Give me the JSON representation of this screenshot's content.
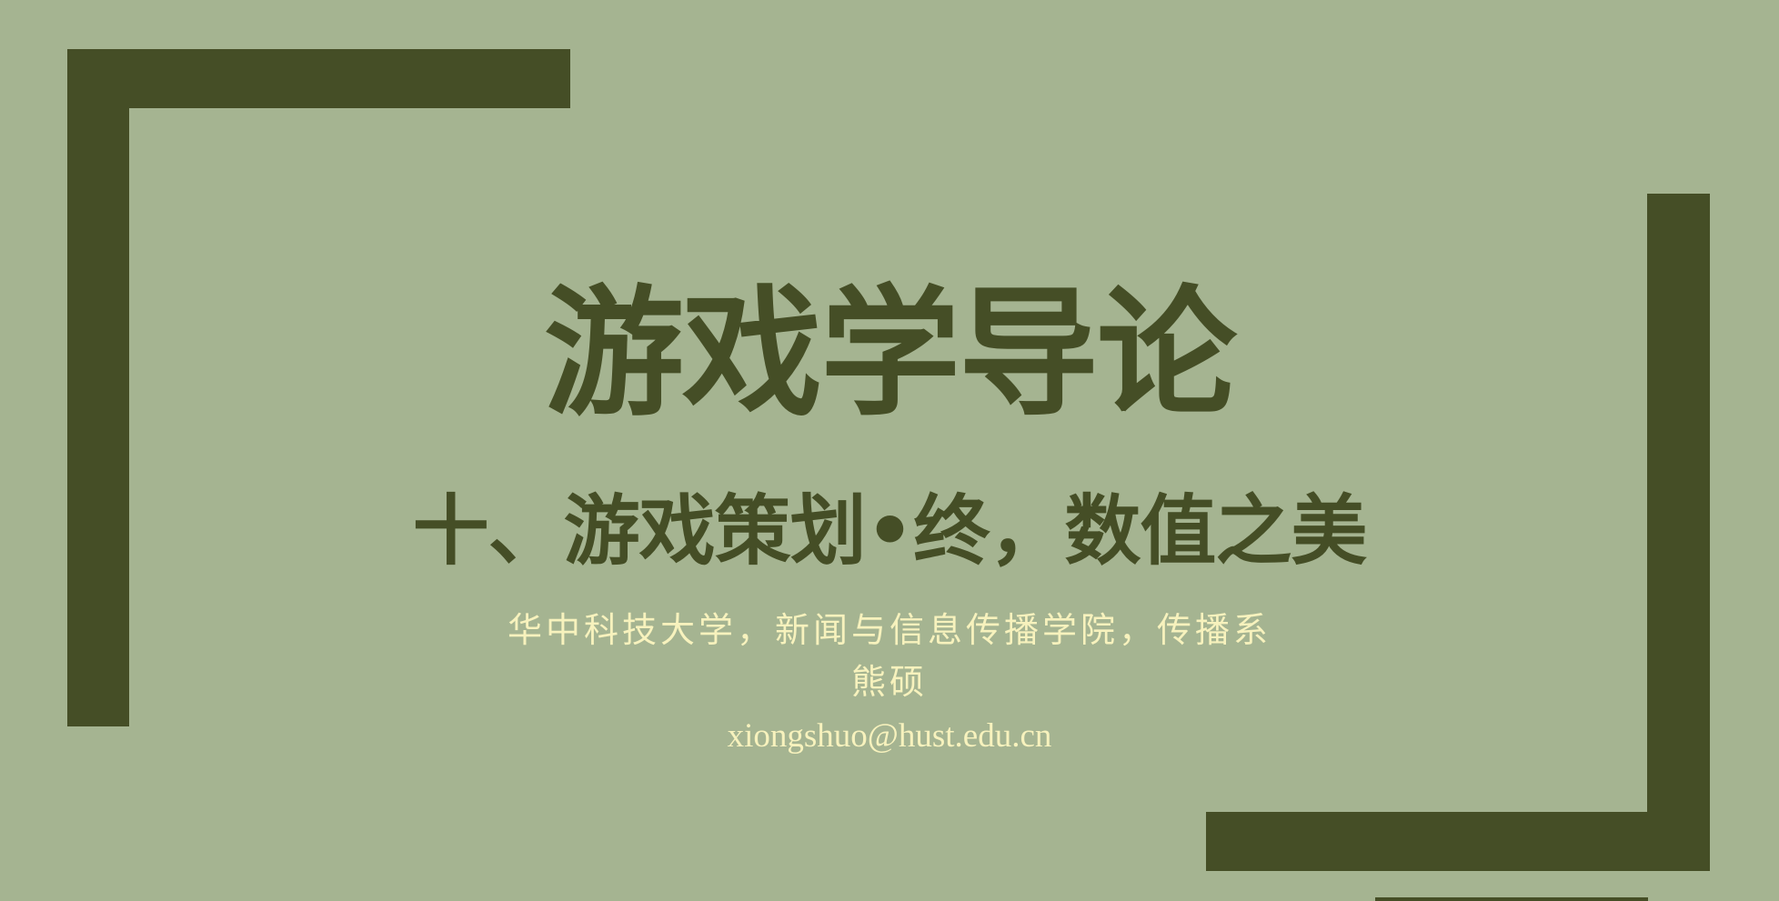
{
  "colors": {
    "background": "#a5b491",
    "accent_dark": "#454e26",
    "text_light": "#f7f2bd"
  },
  "slide": {
    "title": "游戏学导论",
    "subtitle": "十、游戏策划•终，数值之美",
    "affiliation": "华中科技大学，新闻与信息传播学院，传播系",
    "author": "熊硕",
    "email": "xiongshuo@hust.edu.cn"
  }
}
